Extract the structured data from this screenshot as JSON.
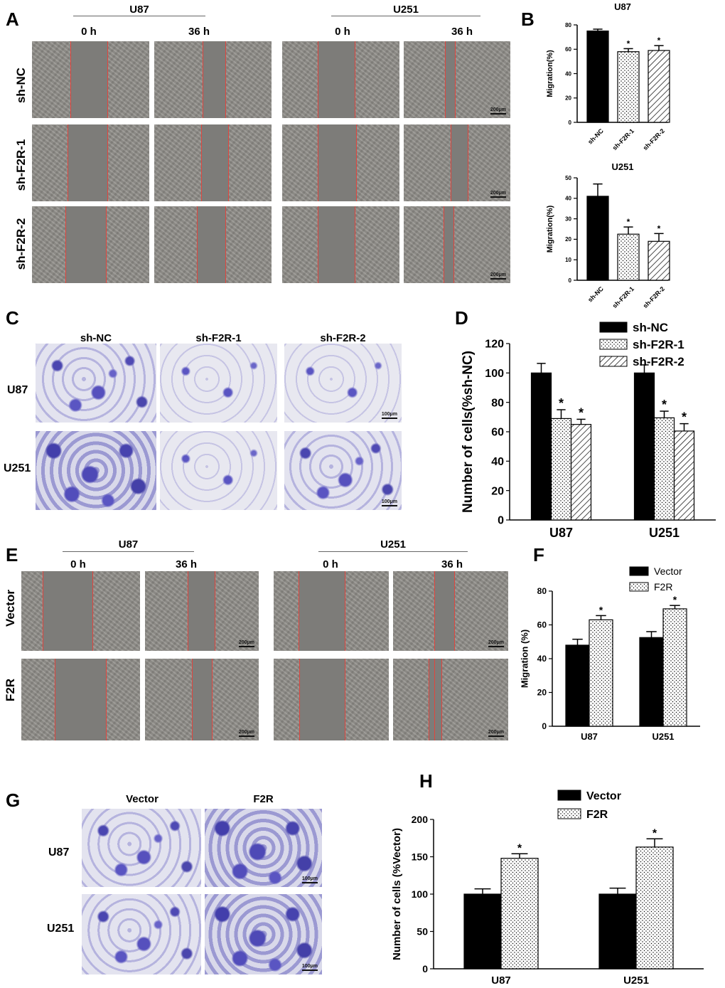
{
  "panels": {
    "A": {
      "label": "A",
      "groups": [
        "U87",
        "U251"
      ],
      "times": [
        "0 h",
        "36 h",
        "0 h",
        "36 h"
      ],
      "rows": [
        "sh-NC",
        "sh-F2R-1",
        "sh-F2R-2"
      ],
      "scale": "200μm"
    },
    "C": {
      "label": "C",
      "cols": [
        "sh-NC",
        "sh-F2R-1",
        "sh-F2R-2"
      ],
      "rows": [
        "U87",
        "U251"
      ],
      "scale": "100μm"
    },
    "E": {
      "label": "E",
      "groups": [
        "U87",
        "U251"
      ],
      "times": [
        "0 h",
        "36 h",
        "0 h",
        "36 h"
      ],
      "rows": [
        "Vector",
        "F2R"
      ],
      "scale": "200μm"
    },
    "G": {
      "label": "G",
      "cols": [
        "Vector",
        "F2R"
      ],
      "rows": [
        "U87",
        "U251"
      ],
      "scale": "100μm"
    },
    "B": {
      "label": "B"
    },
    "D": {
      "label": "D"
    },
    "F": {
      "label": "F"
    },
    "H": {
      "label": "H"
    }
  },
  "colors": {
    "bar_black": "#000000",
    "bar_pattern": "#ffffff",
    "red_line": "#e0453e",
    "stain": "#4f4ab4"
  },
  "chart_data": [
    {
      "id": "B_top",
      "type": "bar",
      "title": "U87",
      "ylabel": "Migration(%)",
      "categories": [
        "sh-NC",
        "sh-F2R-1",
        "sh-F2R-2"
      ],
      "values": [
        75,
        58,
        59
      ],
      "errors": [
        1.5,
        2.5,
        4
      ],
      "patterns": [
        "solid",
        "dots",
        "hatch"
      ],
      "significance": [
        "",
        "*",
        "*"
      ],
      "ylim": [
        0,
        80
      ],
      "yticks": [
        0,
        20,
        40,
        60,
        80
      ]
    },
    {
      "id": "B_bottom",
      "type": "bar",
      "title": "U251",
      "ylabel": "Migration(%)",
      "categories": [
        "sh-NC",
        "sh-F2R-1",
        "sh-F2R-2"
      ],
      "values": [
        41,
        22.5,
        19
      ],
      "errors": [
        6,
        3.5,
        3.8
      ],
      "patterns": [
        "solid",
        "dots",
        "hatch"
      ],
      "significance": [
        "",
        "*",
        "*"
      ],
      "ylim": [
        0,
        50
      ],
      "yticks": [
        0,
        10,
        20,
        30,
        40,
        50
      ]
    },
    {
      "id": "D",
      "type": "bar",
      "ylabel": "Number of cells(%sh-NC)",
      "categories": [
        "U87",
        "U251"
      ],
      "series": [
        {
          "name": "sh-NC",
          "values": [
            100,
            100
          ],
          "errors": [
            6.5,
            5.5
          ],
          "pattern": "solid"
        },
        {
          "name": "sh-F2R-1",
          "values": [
            69,
            69.5
          ],
          "errors": [
            6,
            4.5
          ],
          "pattern": "dots"
        },
        {
          "name": "sh-F2R-2",
          "values": [
            65,
            60.5
          ],
          "errors": [
            3.5,
            5
          ],
          "pattern": "hatch"
        }
      ],
      "significance": [
        [
          "",
          "*",
          "*"
        ],
        [
          "",
          "*",
          "*"
        ]
      ],
      "ylim": [
        0,
        120
      ],
      "yticks": [
        0,
        20,
        40,
        60,
        80,
        100,
        120
      ],
      "legend": "top-right"
    },
    {
      "id": "F",
      "type": "bar",
      "ylabel": "Migration (%)",
      "categories": [
        "U87",
        "U251"
      ],
      "series": [
        {
          "name": "Vector",
          "values": [
            48,
            52.5
          ],
          "errors": [
            3.5,
            3.5
          ],
          "pattern": "solid"
        },
        {
          "name": "F2R",
          "values": [
            63,
            69.5
          ],
          "errors": [
            2.5,
            2
          ],
          "pattern": "dots"
        }
      ],
      "significance": [
        [
          "",
          "*"
        ],
        [
          "",
          "*"
        ]
      ],
      "ylim": [
        0,
        80
      ],
      "yticks": [
        0,
        20,
        40,
        60,
        80
      ],
      "legend": "top"
    },
    {
      "id": "H",
      "type": "bar",
      "ylabel": "Number of cells (%Vector)",
      "categories": [
        "U87",
        "U251"
      ],
      "series": [
        {
          "name": "Vector",
          "values": [
            100,
            100
          ],
          "errors": [
            7,
            8
          ],
          "pattern": "solid"
        },
        {
          "name": "F2R",
          "values": [
            148,
            163
          ],
          "errors": [
            6,
            11
          ],
          "pattern": "dots"
        }
      ],
      "significance": [
        [
          "",
          "*"
        ],
        [
          "",
          "*"
        ]
      ],
      "ylim": [
        0,
        200
      ],
      "yticks": [
        0,
        50,
        100,
        150,
        200
      ],
      "legend": "top"
    }
  ]
}
